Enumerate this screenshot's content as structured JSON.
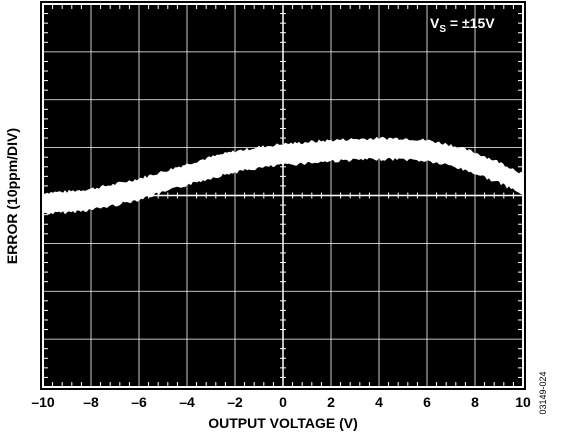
{
  "chart_data": {
    "type": "line",
    "title": "",
    "xlabel": "OUTPUT VOLTAGE (V)",
    "ylabel": "ERROR (10ppm/DIV)",
    "xlim": [
      -10,
      10
    ],
    "ylim": [
      -5,
      5
    ],
    "x_ticks": [
      "–10",
      "–8",
      "–6",
      "–4",
      "–2",
      "0",
      "2",
      "4",
      "6",
      "8",
      "10"
    ],
    "grid": true,
    "annotation": {
      "main": "V",
      "sub": "S",
      "rest": " = ±15V"
    },
    "series": [
      {
        "x": [
          -10,
          -9,
          -8,
          -7,
          -6,
          -5,
          -4,
          -3,
          -2,
          -1,
          0,
          1,
          2,
          3,
          4,
          5,
          6,
          7,
          8,
          9,
          10
        ],
        "y": [
          -0.2,
          -0.17,
          -0.1,
          0.02,
          0.17,
          0.35,
          0.55,
          0.73,
          0.88,
          0.99,
          1.07,
          1.12,
          1.17,
          1.2,
          1.22,
          1.22,
          1.17,
          1.05,
          0.85,
          0.6,
          0.3
        ],
        "band_width": 0.55
      }
    ],
    "colors": {
      "background": "#000000",
      "grid": "#ffffff",
      "trace": "#ffffff"
    }
  },
  "figure_id": "03149-024"
}
